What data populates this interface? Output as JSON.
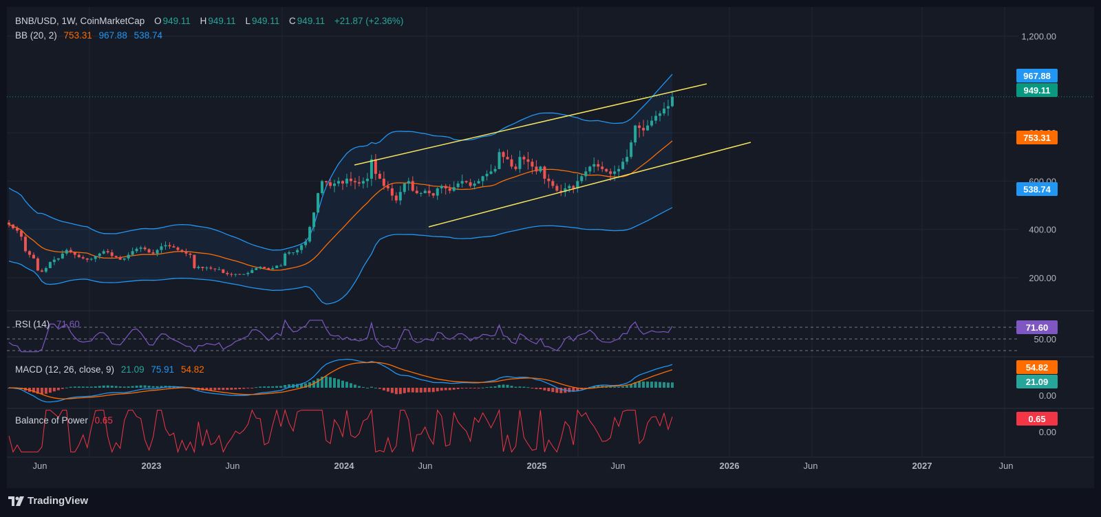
{
  "header": {
    "symbol": "BNB/USD, 1W, CoinMarketCap",
    "o_label": "O",
    "o_value": "949.11",
    "h_label": "H",
    "h_value": "949.11",
    "l_label": "L",
    "l_value": "949.11",
    "c_label": "C",
    "c_value": "949.11",
    "change": "+21.87 (+2.36%)",
    "bb_label": "BB (20, 2)",
    "bb_basis": "753.31",
    "bb_upper": "967.88",
    "bb_lower": "538.74"
  },
  "rsi_legend": {
    "label": "RSI (14)",
    "value": "71.60"
  },
  "macd_legend": {
    "label": "MACD (12, 26, close, 9)",
    "hist": "21.09",
    "macd": "75.91",
    "signal": "54.82"
  },
  "bop_legend": {
    "label": "Balance of Power",
    "value": "0.65"
  },
  "footer": {
    "brand": "TradingView"
  },
  "colors": {
    "up": "#26a69a",
    "down": "#ef5350",
    "bb_band": "#2196f3",
    "bb_basis": "#ff6d00",
    "channel": "#f7e35c",
    "rsi": "#7e57c2",
    "macd": "#2196f3",
    "signal": "#ff6d00",
    "bop": "#f23645"
  },
  "chart_data": [
    {
      "type": "candlestick",
      "title": "BNB/USD, 1W, CoinMarketCap",
      "x_ticks": [
        "Jun",
        "2023",
        "Jun",
        "2024",
        "Jun",
        "2025",
        "Jun",
        "2026",
        "Jun",
        "2027",
        "Jun"
      ],
      "y_ticks": [
        200,
        400,
        600,
        800,
        1200
      ],
      "ylim": [
        60,
        1300
      ],
      "price_labels": [
        {
          "value": 967.88,
          "text": "967.88",
          "color": "#2196f3"
        },
        {
          "value": 949.11,
          "text": "949.11",
          "color": "#089981"
        },
        {
          "value": 753.31,
          "text": "753.31",
          "color": "#ff6d00"
        },
        {
          "value": 538.74,
          "text": "538.74",
          "color": "#2196f3"
        }
      ],
      "last_price": 949.11,
      "bollinger": {
        "period": 20,
        "stddev": 2,
        "basis": 753.31,
        "upper": 967.88,
        "lower": 538.74
      },
      "closes": [
        420,
        405,
        395,
        370,
        310,
        295,
        280,
        230,
        225,
        240,
        265,
        275,
        280,
        300,
        315,
        305,
        295,
        285,
        280,
        275,
        278,
        290,
        300,
        310,
        305,
        290,
        285,
        275,
        280,
        295,
        310,
        320,
        325,
        318,
        305,
        300,
        315,
        330,
        335,
        330,
        325,
        315,
        310,
        300,
        295,
        240,
        245,
        240,
        242,
        238,
        235,
        235,
        220,
        215,
        213,
        215,
        213,
        215,
        220,
        232,
        240,
        245,
        240,
        235,
        240,
        250,
        250,
        300,
        305,
        305,
        315,
        335,
        350,
        410,
        470,
        550,
        600,
        595,
        580,
        590,
        600,
        590,
        610,
        600,
        595,
        590,
        600,
        610,
        690,
        630,
        610,
        580,
        570,
        540,
        520,
        555,
        590,
        600,
        560,
        550,
        550,
        560,
        550,
        540,
        570,
        580,
        570,
        560,
        575,
        590,
        600,
        595,
        580,
        590,
        600,
        620,
        630,
        640,
        650,
        720,
        700,
        690,
        660,
        650,
        700,
        690,
        680,
        660,
        640,
        660,
        610,
        600,
        580,
        560,
        555,
        570,
        580,
        570,
        600,
        620,
        640,
        660,
        670,
        660,
        650,
        640,
        630,
        640,
        650,
        680,
        700,
        760,
        830,
        820,
        810,
        830,
        850,
        870,
        880,
        900,
        910,
        949
      ],
      "channel": {
        "upper": [
          {
            "date": "2024-01",
            "price": 640
          },
          {
            "date": "2025-10",
            "price": 960
          }
        ],
        "lower": [
          {
            "date": "2024-05",
            "price": 385
          },
          {
            "date": "2025-12",
            "price": 730
          }
        ]
      }
    },
    {
      "type": "line",
      "title": "RSI (14)",
      "series": [
        {
          "name": "RSI (14)",
          "last": 71.6
        }
      ],
      "y_ticks": [
        50
      ],
      "ylim": [
        0,
        100
      ],
      "levels": [
        70,
        50,
        30
      ],
      "price_labels": [
        {
          "value": 71.6,
          "text": "71.60",
          "color": "#7e57c2"
        }
      ]
    },
    {
      "type": "line",
      "title": "MACD (12, 26, close, 9)",
      "series": [
        {
          "name": "MACD",
          "last": 75.91
        },
        {
          "name": "Signal",
          "last": 54.82
        },
        {
          "name": "Histogram",
          "last": 21.09
        }
      ],
      "y_ticks": [
        0
      ],
      "price_labels": [
        {
          "value": 54.82,
          "text": "54.82",
          "color": "#ff6d00"
        },
        {
          "value": 21.09,
          "text": "21.09",
          "color": "#26a69a"
        }
      ],
      "zero_label": "0.00"
    },
    {
      "type": "line",
      "title": "Balance of Power",
      "series": [
        {
          "name": "Balance of Power",
          "last": 0.65
        }
      ],
      "y_ticks": [
        0
      ],
      "price_labels": [
        {
          "value": 0.65,
          "text": "0.65",
          "color": "#f23645"
        }
      ],
      "zero_label": "0.00"
    }
  ]
}
